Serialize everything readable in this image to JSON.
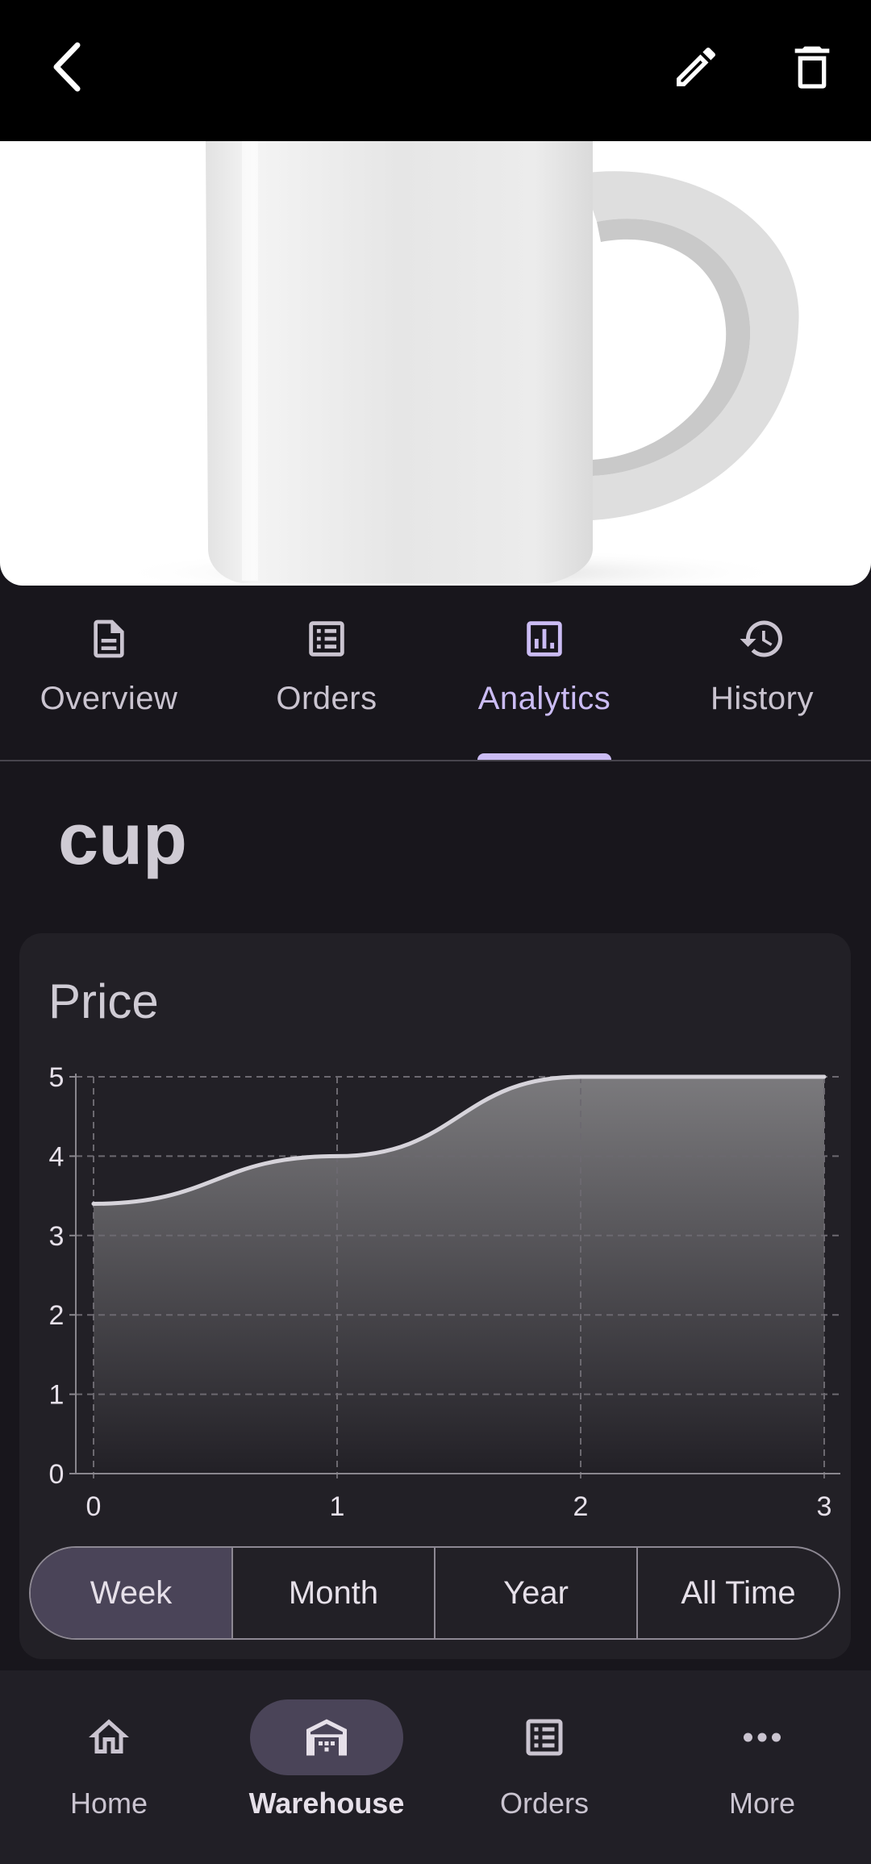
{
  "topbar": {
    "back_icon": "arrow-back-icon",
    "edit_icon": "pencil-icon",
    "delete_icon": "trash-icon"
  },
  "hero": {
    "image": "white ceramic mug"
  },
  "tabs": [
    {
      "label": "Overview",
      "icon": "document-icon",
      "active": false
    },
    {
      "label": "Orders",
      "icon": "list-icon",
      "active": false
    },
    {
      "label": "Analytics",
      "icon": "bar-chart-icon",
      "active": true
    },
    {
      "label": "History",
      "icon": "history-icon",
      "active": false
    }
  ],
  "product": {
    "name": "cup"
  },
  "card": {
    "title": "Price"
  },
  "chart_data": {
    "type": "area",
    "title": "Price",
    "x": [
      0,
      1,
      2,
      3
    ],
    "values": [
      3.4,
      4.0,
      5.0,
      5.0
    ],
    "xlim": [
      0,
      3
    ],
    "ylim": [
      0,
      5
    ],
    "xticks": [
      "0",
      "1",
      "2",
      "3"
    ],
    "yticks": [
      "0",
      "1",
      "2",
      "3",
      "4",
      "5"
    ],
    "grid": true,
    "line_color": "#d6d3da"
  },
  "range": {
    "options": [
      "Week",
      "Month",
      "Year",
      "All Time"
    ],
    "selected": "Week"
  },
  "bottom_nav": [
    {
      "label": "Home",
      "icon": "home-icon",
      "active": false
    },
    {
      "label": "Warehouse",
      "icon": "warehouse-icon",
      "active": true
    },
    {
      "label": "Orders",
      "icon": "list-icon",
      "active": false
    },
    {
      "label": "More",
      "icon": "more-horizontal-icon",
      "active": false
    }
  ],
  "colors": {
    "accent": "#cbbcf4",
    "background": "#18161c",
    "card": "#222026",
    "selected": "#4a4458"
  }
}
